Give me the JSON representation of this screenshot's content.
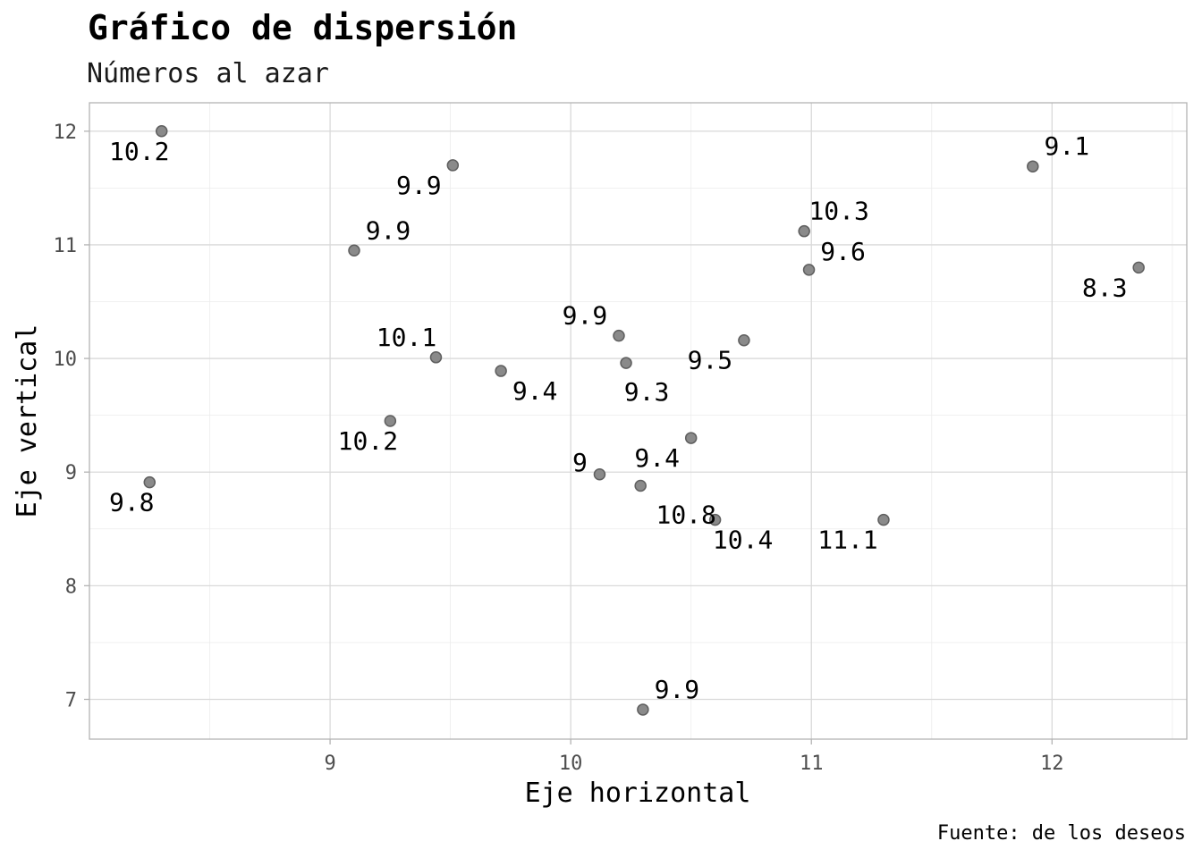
{
  "chart_data": {
    "type": "scatter",
    "title": "Gráfico de dispersión",
    "subtitle": "Números al azar",
    "xlabel": "Eje horizontal",
    "ylabel": "Eje vertical",
    "caption": "Fuente: de los deseos",
    "xlim": [
      8.0,
      12.56
    ],
    "ylim": [
      6.65,
      12.25
    ],
    "x_ticks": [
      9,
      10,
      11,
      12
    ],
    "y_ticks": [
      7,
      8,
      9,
      10,
      11,
      12
    ],
    "grid": true,
    "legend": "none",
    "point_color": "#8a8a8a",
    "points": [
      {
        "x": 8.3,
        "y": 12.0,
        "label": "10.2"
      },
      {
        "x": 8.25,
        "y": 8.91,
        "label": "9.8"
      },
      {
        "x": 9.1,
        "y": 10.95,
        "label": "9.9"
      },
      {
        "x": 9.25,
        "y": 9.45,
        "label": "10.2"
      },
      {
        "x": 9.44,
        "y": 10.01,
        "label": "10.1"
      },
      {
        "x": 9.51,
        "y": 11.7,
        "label": "9.9"
      },
      {
        "x": 9.71,
        "y": 9.89,
        "label": "9.4"
      },
      {
        "x": 10.12,
        "y": 8.98,
        "label": "9"
      },
      {
        "x": 10.2,
        "y": 10.2,
        "label": "9.9"
      },
      {
        "x": 10.23,
        "y": 9.96,
        "label": "9.3"
      },
      {
        "x": 10.29,
        "y": 8.88,
        "label": "10.8"
      },
      {
        "x": 10.3,
        "y": 6.91,
        "label": "9.9"
      },
      {
        "x": 10.5,
        "y": 9.3,
        "label": "9.4"
      },
      {
        "x": 10.6,
        "y": 8.58,
        "label": "10.4"
      },
      {
        "x": 10.72,
        "y": 10.16,
        "label": "9.5"
      },
      {
        "x": 10.97,
        "y": 11.12,
        "label": "10.3"
      },
      {
        "x": 10.99,
        "y": 10.78,
        "label": "9.6"
      },
      {
        "x": 11.3,
        "y": 8.58,
        "label": "11.1"
      },
      {
        "x": 11.92,
        "y": 11.69,
        "label": "9.1"
      },
      {
        "x": 12.36,
        "y": 10.8,
        "label": "8.3"
      }
    ]
  }
}
